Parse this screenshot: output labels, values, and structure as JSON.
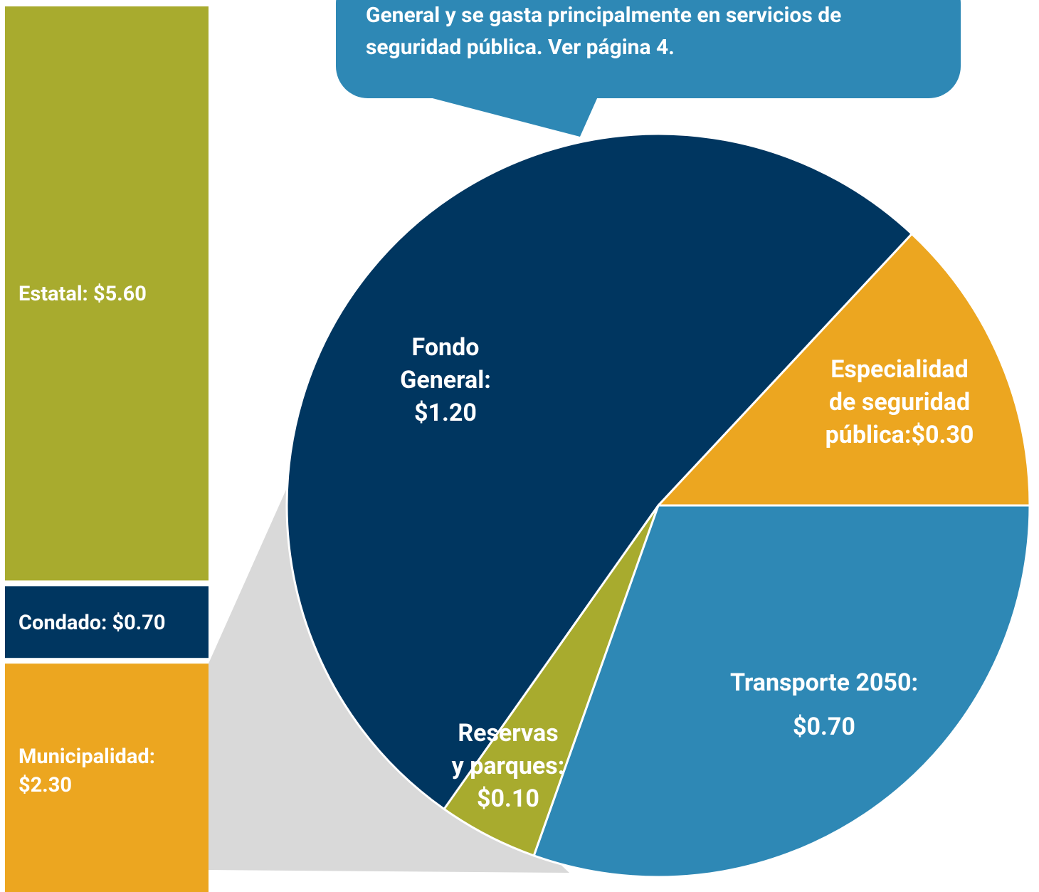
{
  "callout": {
    "lines": [
      "General y se gasta principalmente en servicios de",
      "seguridad pública. Ver página  4."
    ]
  },
  "chart_data": [
    {
      "type": "stacked_bar",
      "categories": [
        "Estatal:",
        "Condado:",
        "Municipalidad:"
      ],
      "values": [
        5.6,
        0.7,
        2.3
      ],
      "value_labels": [
        "$5.60",
        "$0.70",
        "$2.30"
      ],
      "colors": [
        "#a8ab2e",
        "#003660",
        "#eca620"
      ]
    },
    {
      "type": "pie",
      "labels": [
        [
          "Especialidad",
          "de seguridad",
          "pública:"
        ],
        [
          "Transporte 2050:"
        ],
        [
          "Reservas",
          "y parques:"
        ],
        [
          "Fondo",
          "General:"
        ]
      ],
      "values": [
        0.3,
        0.7,
        0.1,
        1.2
      ],
      "value_labels": [
        "$0.30",
        "$0.70",
        "$0.10",
        "$1.20"
      ],
      "colors": [
        "#eca620",
        "#2e88b5",
        "#a8ab2e",
        "#003660"
      ]
    }
  ]
}
